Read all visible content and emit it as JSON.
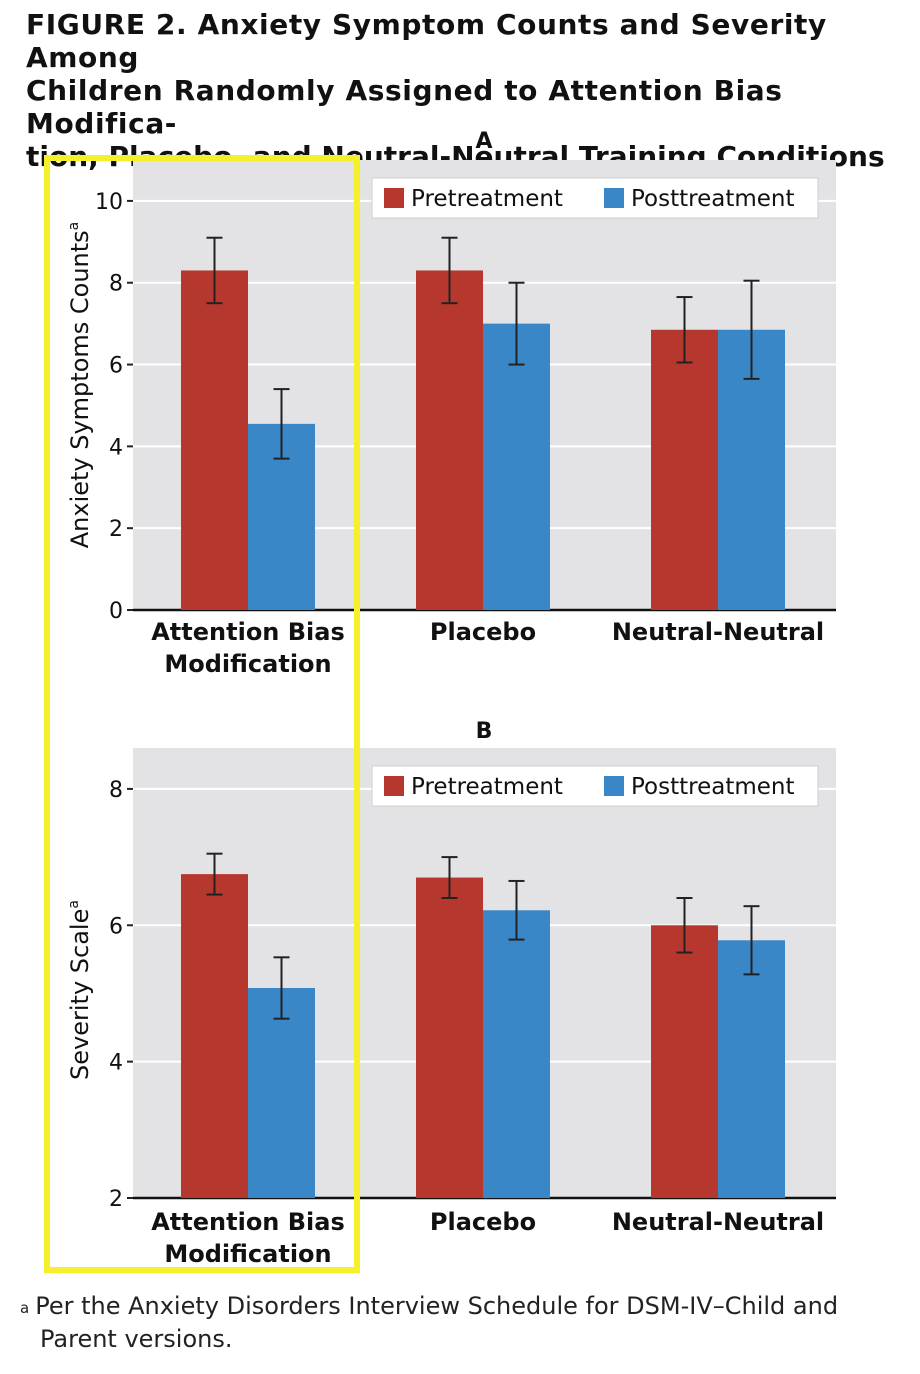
{
  "figure": {
    "title_lines": [
      "FIGURE 2. Anxiety Symptom Counts and Severity Among",
      "Children Randomly Assigned to Attention Bias Modifica-",
      "tion, Placebo, and Neutral-Neutral Training Conditions"
    ],
    "footnote_marker": "a",
    "footnote_lines": [
      "Per the Anxiety Disorders Interview Schedule for DSM-IV–Child and",
      "Parent versions."
    ]
  },
  "colors": {
    "pretreatment": "#b5372e",
    "posttreatment": "#3a87c8",
    "panel_bg": "#e3e3e5",
    "grid": "#ffffff",
    "highlight": "#f6ef2c"
  },
  "chart_data": [
    {
      "type": "bar",
      "panel_label": "A",
      "title": "A",
      "ylabel": "Anxiety Symptoms Counts",
      "ylabel_superscript": "a",
      "ylim": [
        0,
        11
      ],
      "yticks": [
        0,
        2,
        4,
        6,
        8,
        10
      ],
      "grid": true,
      "legend_position": "top-right",
      "categories": [
        [
          "Attention Bias",
          "Modification"
        ],
        [
          "Placebo"
        ],
        [
          "Neutral-Neutral"
        ]
      ],
      "series": [
        {
          "name": "Pretreatment",
          "values": [
            8.3,
            8.3,
            6.85
          ],
          "error": [
            0.8,
            0.8,
            0.8
          ]
        },
        {
          "name": "Posttreatment",
          "values": [
            4.55,
            7.0,
            6.85
          ],
          "error": [
            0.85,
            1.0,
            1.2
          ]
        }
      ]
    },
    {
      "type": "bar",
      "panel_label": "B",
      "title": "B",
      "ylabel": "Severity Scale",
      "ylabel_superscript": "a",
      "ylim": [
        2,
        8.6
      ],
      "yticks": [
        2,
        4,
        6,
        8
      ],
      "grid": true,
      "legend_position": "top-right",
      "categories": [
        [
          "Attention Bias",
          "Modification"
        ],
        [
          "Placebo"
        ],
        [
          "Neutral-Neutral"
        ]
      ],
      "series": [
        {
          "name": "Pretreatment",
          "values": [
            6.75,
            6.7,
            6.0
          ],
          "error": [
            0.3,
            0.3,
            0.4
          ]
        },
        {
          "name": "Posttreatment",
          "values": [
            5.08,
            6.22,
            5.78
          ],
          "error": [
            0.45,
            0.43,
            0.5
          ]
        }
      ]
    }
  ]
}
